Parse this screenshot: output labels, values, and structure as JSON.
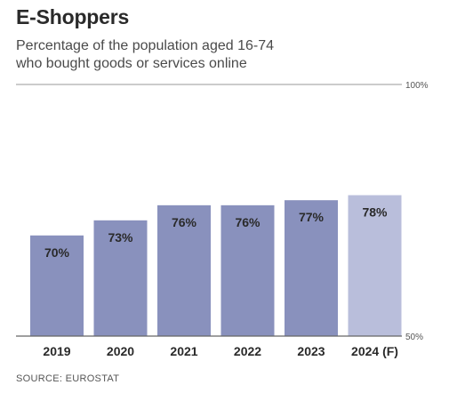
{
  "title": "E-Shoppers",
  "subtitle_lines": [
    "Percentage of the population aged 16-74",
    "who bought goods or services online"
  ],
  "source": "SOURCE: EUROSTAT",
  "colors": {
    "bar": "#8991bd",
    "bar_forecast": "#b9bedb",
    "label": "#2a2a2a",
    "axis": "#666666",
    "grid": "#9a9a9a"
  },
  "chart_data": {
    "type": "bar",
    "categories": [
      "2019",
      "2020",
      "2021",
      "2022",
      "2023",
      "2024 (F)"
    ],
    "values": [
      70,
      73,
      76,
      76,
      77,
      78
    ],
    "data_labels": [
      "70%",
      "73%",
      "76%",
      "76%",
      "77%",
      "78%"
    ],
    "forecast_index": 5,
    "ylim": [
      50,
      100
    ],
    "yticks": [
      {
        "value": 100,
        "label": "100%"
      },
      {
        "value": 50,
        "label": "50%"
      }
    ],
    "title": "E-Shoppers",
    "xlabel": "",
    "ylabel": "",
    "grid": true
  }
}
